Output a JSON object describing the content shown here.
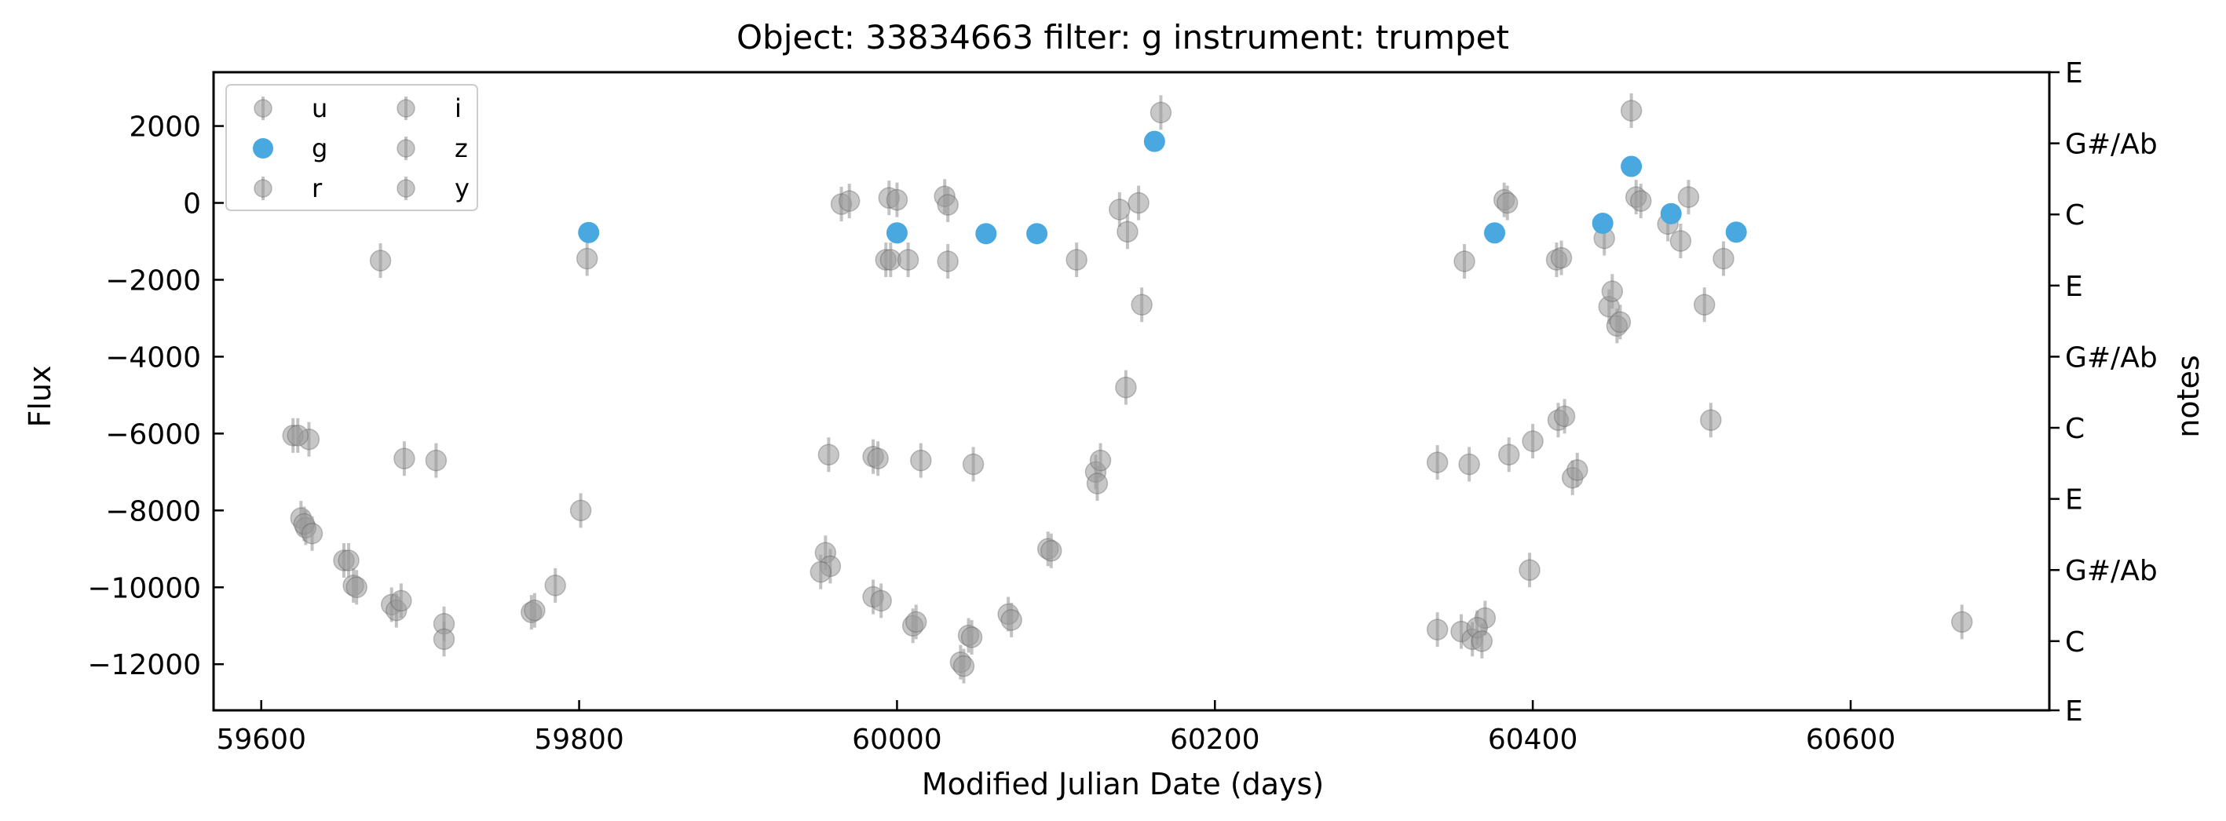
{
  "chart_data": {
    "type": "scatter",
    "title": "Object: 33834663 filter: g instrument: trumpet",
    "xlabel": "Modified Julian Date (days)",
    "ylabel": "Flux",
    "y2label": "notes",
    "xlim": [
      59570,
      60725
    ],
    "ylim": [
      -13200,
      3400
    ],
    "x_ticks": [
      59600,
      59800,
      60000,
      60200,
      60400,
      60600
    ],
    "y_ticks": [
      2000,
      0,
      -2000,
      -4000,
      -6000,
      -8000,
      -10000,
      -12000
    ],
    "x_tick_labels": [
      "59600",
      "59800",
      "60000",
      "60200",
      "60400",
      "60600"
    ],
    "y_tick_labels": [
      "2000",
      "0",
      "−2000",
      "−4000",
      "−6000",
      "−8000",
      "−10000",
      "−12000"
    ],
    "note_ticks": [
      {
        "y": 3400,
        "label": "E"
      },
      {
        "y": 1550,
        "label": "G#/Ab"
      },
      {
        "y": -300,
        "label": "C"
      },
      {
        "y": -2150,
        "label": "E"
      },
      {
        "y": -4000,
        "label": "G#/Ab"
      },
      {
        "y": -5850,
        "label": "C"
      },
      {
        "y": -7700,
        "label": "E"
      },
      {
        "y": -9550,
        "label": "G#/Ab"
      },
      {
        "y": -11400,
        "label": "C"
      },
      {
        "y": -13200,
        "label": "E"
      }
    ],
    "grid": false,
    "legend": {
      "location": "top-left",
      "columns": 2
    },
    "colors": {
      "highlight": "#4aa8e0",
      "background_bands": "#999999"
    },
    "series": [
      {
        "name": "u",
        "color": "#999999",
        "highlight": false,
        "points": [
          {
            "x": 59620,
            "y": -6050
          },
          {
            "x": 59630,
            "y": -6150
          },
          {
            "x": 59625,
            "y": -8200
          },
          {
            "x": 59628,
            "y": -8450
          },
          {
            "x": 59652,
            "y": -9300
          },
          {
            "x": 59658,
            "y": -9950
          },
          {
            "x": 59682,
            "y": -10450
          },
          {
            "x": 59685,
            "y": -10600
          },
          {
            "x": 59715,
            "y": -10950
          },
          {
            "x": 59770,
            "y": -10650
          },
          {
            "x": 59785,
            "y": -9950
          },
          {
            "x": 59955,
            "y": -9100
          },
          {
            "x": 59958,
            "y": -9450
          },
          {
            "x": 59985,
            "y": -10250
          },
          {
            "x": 60010,
            "y": -11000
          },
          {
            "x": 60040,
            "y": -11950
          },
          {
            "x": 60045,
            "y": -11250
          },
          {
            "x": 60070,
            "y": -10700
          },
          {
            "x": 60095,
            "y": -9000
          },
          {
            "x": 60340,
            "y": -11100
          },
          {
            "x": 60355,
            "y": -11150
          },
          {
            "x": 60362,
            "y": -11350
          },
          {
            "x": 60370,
            "y": -10800
          },
          {
            "x": 60398,
            "y": -9550
          },
          {
            "x": 60670,
            "y": -10900
          }
        ]
      },
      {
        "name": "g",
        "color": "#4aa8e0",
        "highlight": true,
        "points": [
          {
            "x": 59806,
            "y": -770
          },
          {
            "x": 60000,
            "y": -780
          },
          {
            "x": 60056,
            "y": -800
          },
          {
            "x": 60088,
            "y": -800
          },
          {
            "x": 60162,
            "y": 1600
          },
          {
            "x": 60376,
            "y": -780
          },
          {
            "x": 60444,
            "y": -530
          },
          {
            "x": 60462,
            "y": 950
          },
          {
            "x": 60487,
            "y": -280
          },
          {
            "x": 60528,
            "y": -760
          }
        ]
      },
      {
        "name": "r",
        "color": "#999999",
        "highlight": false,
        "points": [
          {
            "x": 59675,
            "y": -1500
          },
          {
            "x": 59805,
            "y": -1450
          },
          {
            "x": 59965,
            "y": -30
          },
          {
            "x": 59970,
            "y": 50
          },
          {
            "x": 59995,
            "y": 130
          },
          {
            "x": 60000,
            "y": 80
          },
          {
            "x": 60030,
            "y": 170
          },
          {
            "x": 60032,
            "y": -50
          },
          {
            "x": 60140,
            "y": -170
          },
          {
            "x": 60152,
            "y": 0
          },
          {
            "x": 60166,
            "y": 2350
          },
          {
            "x": 60382,
            "y": 80
          },
          {
            "x": 60384,
            "y": 0
          },
          {
            "x": 60445,
            "y": -920
          },
          {
            "x": 60462,
            "y": 2400
          },
          {
            "x": 60465,
            "y": 150
          },
          {
            "x": 60468,
            "y": 50
          },
          {
            "x": 60485,
            "y": -550
          },
          {
            "x": 60498,
            "y": 150
          }
        ]
      },
      {
        "name": "i",
        "color": "#999999",
        "highlight": false,
        "points": [
          {
            "x": 59993,
            "y": -1480
          },
          {
            "x": 59996,
            "y": -1480
          },
          {
            "x": 60007,
            "y": -1480
          },
          {
            "x": 60032,
            "y": -1520
          },
          {
            "x": 60113,
            "y": -1480
          },
          {
            "x": 60145,
            "y": -750
          },
          {
            "x": 60154,
            "y": -2650
          },
          {
            "x": 60144,
            "y": -4800
          },
          {
            "x": 60357,
            "y": -1520
          },
          {
            "x": 60415,
            "y": -1480
          },
          {
            "x": 60418,
            "y": -1430
          },
          {
            "x": 60448,
            "y": -2700
          },
          {
            "x": 60450,
            "y": -2300
          },
          {
            "x": 60453,
            "y": -3200
          },
          {
            "x": 60455,
            "y": -3100
          },
          {
            "x": 60493,
            "y": -990
          },
          {
            "x": 60508,
            "y": -2650
          },
          {
            "x": 60520,
            "y": -1450
          }
        ]
      },
      {
        "name": "z",
        "color": "#999999",
        "highlight": false,
        "points": [
          {
            "x": 59690,
            "y": -6650
          },
          {
            "x": 59710,
            "y": -6700
          },
          {
            "x": 59957,
            "y": -6550
          },
          {
            "x": 59985,
            "y": -6600
          },
          {
            "x": 59988,
            "y": -6650
          },
          {
            "x": 60015,
            "y": -6700
          },
          {
            "x": 60048,
            "y": -6800
          },
          {
            "x": 60125,
            "y": -7000
          },
          {
            "x": 60128,
            "y": -6700
          },
          {
            "x": 60126,
            "y": -7300
          },
          {
            "x": 60340,
            "y": -6750
          },
          {
            "x": 60360,
            "y": -6800
          },
          {
            "x": 60385,
            "y": -6550
          },
          {
            "x": 60400,
            "y": -6200
          },
          {
            "x": 60416,
            "y": -5650
          },
          {
            "x": 60420,
            "y": -5550
          },
          {
            "x": 60425,
            "y": -7150
          },
          {
            "x": 60428,
            "y": -6950
          },
          {
            "x": 60512,
            "y": -5650
          }
        ]
      },
      {
        "name": "y",
        "color": "#999999",
        "highlight": false,
        "points": [
          {
            "x": 59623,
            "y": -6050
          },
          {
            "x": 59627,
            "y": -8350
          },
          {
            "x": 59632,
            "y": -8600
          },
          {
            "x": 59655,
            "y": -9300
          },
          {
            "x": 59660,
            "y": -10000
          },
          {
            "x": 59688,
            "y": -10350
          },
          {
            "x": 59715,
            "y": -11350
          },
          {
            "x": 59772,
            "y": -10600
          },
          {
            "x": 59801,
            "y": -8000
          },
          {
            "x": 59952,
            "y": -9600
          },
          {
            "x": 59990,
            "y": -10350
          },
          {
            "x": 60012,
            "y": -10900
          },
          {
            "x": 60042,
            "y": -12050
          },
          {
            "x": 60047,
            "y": -11300
          },
          {
            "x": 60072,
            "y": -10850
          },
          {
            "x": 60097,
            "y": -9050
          },
          {
            "x": 60365,
            "y": -11050
          },
          {
            "x": 60368,
            "y": -11400
          }
        ]
      }
    ]
  }
}
